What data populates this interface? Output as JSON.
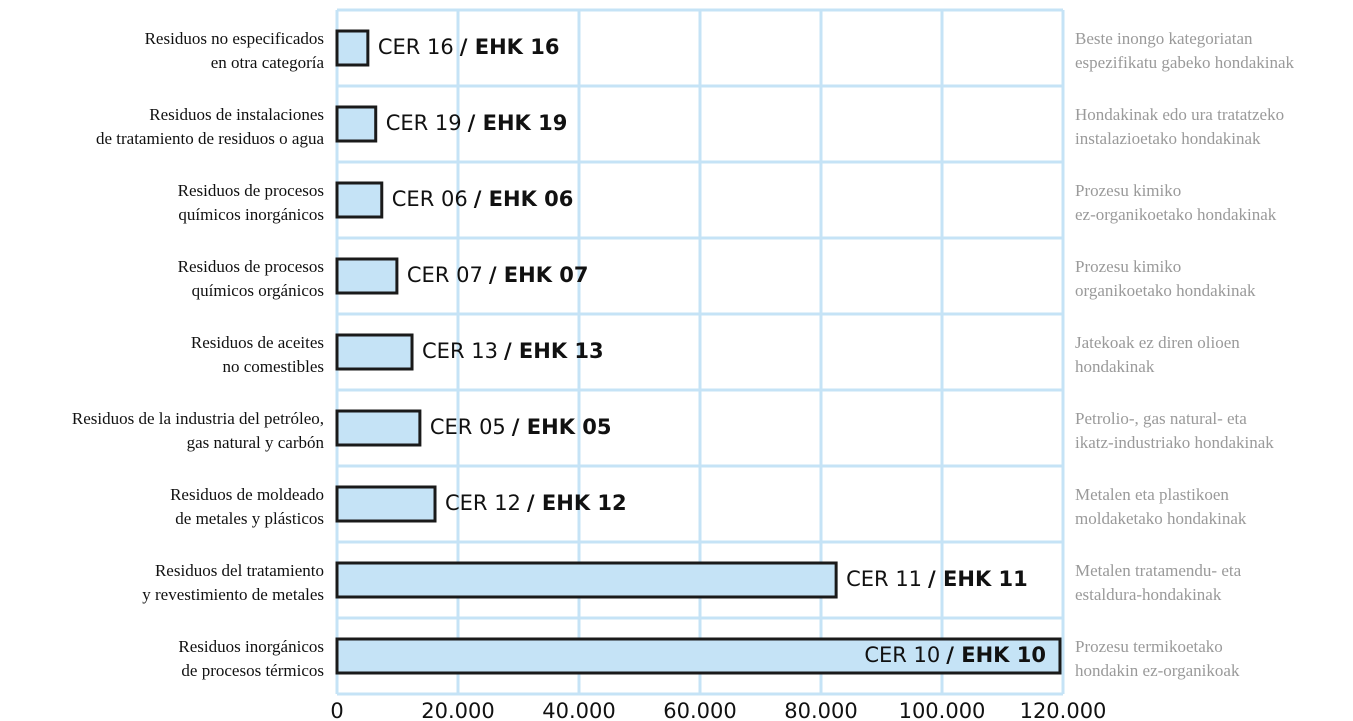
{
  "chart_data": {
    "type": "bar",
    "orientation": "horizontal",
    "categories": [
      [
        "Residuos no especificados",
        "en otra categoría"
      ],
      [
        "Residuos de instalaciones",
        "de tratamiento de residuos o agua"
      ],
      [
        "Residuos de procesos",
        "químicos inorgánicos"
      ],
      [
        "Residuos de procesos",
        "químicos orgánicos"
      ],
      [
        "Residuos de aceites",
        "no comestibles"
      ],
      [
        "Residuos de la industria del petróleo,",
        "gas natural y carbón"
      ],
      [
        "Residuos de moldeado",
        "de metales y plásticos"
      ],
      [
        "Residuos del tratamiento",
        "y revestimiento de metales"
      ],
      [
        "Residuos inorgánicos",
        "de procesos térmicos"
      ]
    ],
    "categories_eu": [
      [
        "Beste inongo kategoriatan",
        "espezifikatu gabeko hondakinak"
      ],
      [
        "Hondakinak edo ura tratatzeko",
        "instalazioetako hondakinak"
      ],
      [
        "Prozesu kimiko",
        "ez-organikoetako hondakinak"
      ],
      [
        "Prozesu kimiko",
        "organikoetako hondakinak"
      ],
      [
        "Jatekoak ez diren olioen",
        "hondakinak"
      ],
      [
        "Petrolio-, gas natural- eta",
        "ikatz-industriako hondakinak"
      ],
      [
        "Metalen eta plastikoen",
        "moldaketako hondakinak"
      ],
      [
        "Metalen tratamendu- eta",
        "estaldura-hondakinak"
      ],
      [
        "Prozesu termikoetako",
        "hondakin ez-organikoak"
      ]
    ],
    "cer_labels": [
      "CER 16",
      "CER 19",
      "CER 06",
      "CER 07",
      "CER 13",
      "CER 05",
      "CER 12",
      "CER 11",
      "CER 10"
    ],
    "ehk_labels": [
      "/ EHK 16",
      "/ EHK 19",
      "/ EHK 06",
      "/ EHK 07",
      "/ EHK 13",
      "/ EHK 05",
      "/ EHK 12",
      "/ EHK 11",
      "/ EHK 10"
    ],
    "values": [
      5100,
      6400,
      7400,
      9900,
      12400,
      13700,
      16200,
      82500,
      119500
    ],
    "color": "#c5e3f6",
    "grid": true,
    "xlim": [
      0,
      120000
    ],
    "xticks": [
      0,
      {
        "value": 20000,
        "label": "20.000"
      },
      {
        "value": 40000,
        "label": "40.000"
      },
      {
        "value": 60000,
        "label": "60.000"
      },
      {
        "value": 80000,
        "label": "80.000"
      },
      {
        "value": 100000,
        "label": "100.000"
      },
      {
        "value": 120000,
        "label": "120.000"
      }
    ]
  }
}
